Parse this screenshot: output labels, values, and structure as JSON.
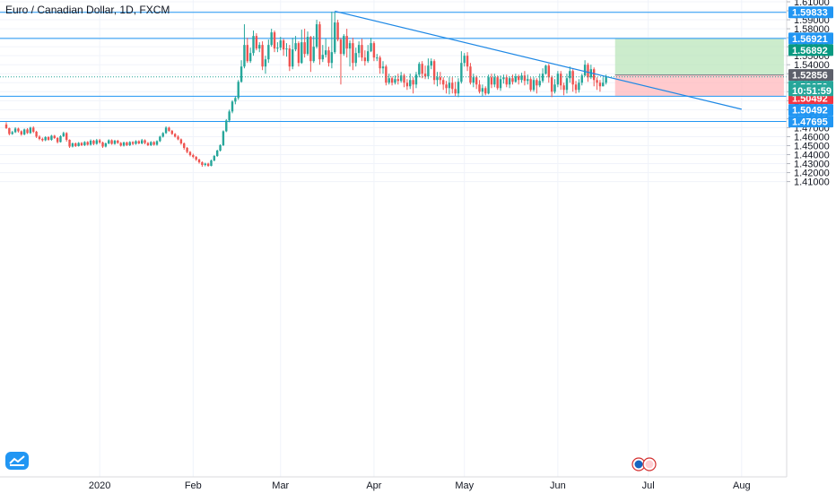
{
  "header": {
    "title": "Euro / Canadian Dollar, 1D, FXCM"
  },
  "chart_data": {
    "type": "candlestick",
    "y_ticks": [
      1.41,
      1.42,
      1.43,
      1.44,
      1.45,
      1.46,
      1.47,
      1.48,
      1.49,
      1.5,
      1.51,
      1.52,
      1.53,
      1.54,
      1.55,
      1.56,
      1.57,
      1.58,
      1.59,
      1.6,
      1.61
    ],
    "x_ticks": [
      {
        "label": "2020",
        "day": 31
      },
      {
        "label": "Feb",
        "day": 62
      },
      {
        "label": "Mar",
        "day": 91
      },
      {
        "label": "Apr",
        "day": 122
      },
      {
        "label": "May",
        "day": 152
      },
      {
        "label": "Jun",
        "day": 183
      },
      {
        "label": "Jul",
        "day": 213
      },
      {
        "label": "Aug",
        "day": 244
      }
    ],
    "horizontal_lines": [
      1.59833,
      1.56921,
      1.50492,
      1.47695
    ],
    "trendline": {
      "start": {
        "day": 109,
        "price": 1.5995
      },
      "end": {
        "day": 244,
        "price": 1.4905
      }
    },
    "position": {
      "entry": 1.52856,
      "target": 1.56921,
      "stop": 1.50492,
      "start_day": 202,
      "end_day": 258
    },
    "price_tags": [
      {
        "value": 1.59833,
        "label": "1.59833",
        "color": "#2196f3"
      },
      {
        "value": 1.56921,
        "label": "1.56921",
        "color": "#2196f3"
      },
      {
        "value": 1.56892,
        "label": "1.56892",
        "color": "#089981"
      },
      {
        "value": 1.52856,
        "label": "1.52856",
        "color": "#5d606b"
      },
      {
        "value": 1.5265,
        "label": "1.52650",
        "color": "#26a69a"
      },
      {
        "value": 1.50492,
        "label": "1.50492",
        "color": "#f23645"
      },
      {
        "value": 1.50492,
        "label": "1.50492",
        "color": "#2196f3"
      },
      {
        "value": 1.47695,
        "label": "1.47695",
        "color": "#2196f3"
      }
    ],
    "countdown": "10:51:59",
    "last_price": 1.5265,
    "candles": [
      [
        0,
        1.4735,
        1.4695,
        1.476,
        1.4685
      ],
      [
        1,
        1.4695,
        1.463,
        1.47,
        1.4615
      ],
      [
        2,
        1.463,
        1.465,
        1.4665,
        1.462
      ],
      [
        3,
        1.465,
        1.469,
        1.4705,
        1.464
      ],
      [
        4,
        1.469,
        1.466,
        1.47,
        1.4645
      ],
      [
        5,
        1.466,
        1.4625,
        1.467,
        1.461
      ],
      [
        6,
        1.4625,
        1.468,
        1.469,
        1.4615
      ],
      [
        7,
        1.468,
        1.464,
        1.4695,
        1.463
      ],
      [
        8,
        1.464,
        1.47,
        1.471,
        1.463
      ],
      [
        9,
        1.47,
        1.4655,
        1.4715,
        1.464
      ],
      [
        10,
        1.4655,
        1.46,
        1.4665,
        1.4585
      ],
      [
        11,
        1.46,
        1.4575,
        1.4615,
        1.456
      ],
      [
        12,
        1.4575,
        1.456,
        1.459,
        1.4545
      ],
      [
        13,
        1.456,
        1.4595,
        1.4605,
        1.455
      ],
      [
        14,
        1.4595,
        1.4565,
        1.4605,
        1.4555
      ],
      [
        15,
        1.4565,
        1.461,
        1.462,
        1.4555
      ],
      [
        16,
        1.461,
        1.4585,
        1.462,
        1.4575
      ],
      [
        17,
        1.4585,
        1.454,
        1.4595,
        1.4525
      ],
      [
        18,
        1.454,
        1.4605,
        1.4615,
        1.4535
      ],
      [
        19,
        1.4605,
        1.464,
        1.4655,
        1.4595
      ],
      [
        20,
        1.464,
        1.4565,
        1.465,
        1.4545
      ],
      [
        21,
        1.4565,
        1.449,
        1.457,
        1.4475
      ],
      [
        22,
        1.449,
        1.4525,
        1.4535,
        1.448
      ],
      [
        23,
        1.4525,
        1.4495,
        1.4535,
        1.4485
      ],
      [
        24,
        1.4495,
        1.453,
        1.454,
        1.449
      ],
      [
        25,
        1.453,
        1.4505,
        1.454,
        1.4495
      ],
      [
        26,
        1.4505,
        1.454,
        1.455,
        1.4495
      ],
      [
        27,
        1.454,
        1.451,
        1.455,
        1.45
      ],
      [
        28,
        1.451,
        1.4555,
        1.457,
        1.45
      ],
      [
        29,
        1.4555,
        1.452,
        1.4565,
        1.4505
      ],
      [
        30,
        1.452,
        1.456,
        1.4575,
        1.451
      ],
      [
        31,
        1.456,
        1.4535,
        1.4575,
        1.452
      ],
      [
        32,
        1.4535,
        1.449,
        1.4545,
        1.4475
      ],
      [
        33,
        1.449,
        1.4525,
        1.4535,
        1.448
      ],
      [
        34,
        1.4525,
        1.456,
        1.457,
        1.4515
      ],
      [
        35,
        1.456,
        1.452,
        1.457,
        1.451
      ],
      [
        36,
        1.452,
        1.4555,
        1.4565,
        1.451
      ],
      [
        37,
        1.4555,
        1.453,
        1.4565,
        1.452
      ],
      [
        38,
        1.453,
        1.45,
        1.454,
        1.449
      ],
      [
        39,
        1.45,
        1.4535,
        1.4545,
        1.449
      ],
      [
        40,
        1.4535,
        1.4505,
        1.4545,
        1.4495
      ],
      [
        41,
        1.4505,
        1.454,
        1.455,
        1.4495
      ],
      [
        42,
        1.454,
        1.452,
        1.455,
        1.4505
      ],
      [
        43,
        1.452,
        1.455,
        1.456,
        1.451
      ],
      [
        44,
        1.455,
        1.4525,
        1.456,
        1.4515
      ],
      [
        45,
        1.4525,
        1.456,
        1.4575,
        1.4515
      ],
      [
        46,
        1.456,
        1.453,
        1.457,
        1.4515
      ],
      [
        47,
        1.453,
        1.4505,
        1.454,
        1.4495
      ],
      [
        48,
        1.4505,
        1.454,
        1.455,
        1.4495
      ],
      [
        49,
        1.454,
        1.451,
        1.455,
        1.45
      ],
      [
        50,
        1.451,
        1.455,
        1.456,
        1.45
      ],
      [
        51,
        1.455,
        1.46,
        1.461,
        1.454
      ],
      [
        52,
        1.46,
        1.464,
        1.465,
        1.459
      ],
      [
        53,
        1.464,
        1.47,
        1.4715,
        1.463
      ],
      [
        54,
        1.47,
        1.4665,
        1.471,
        1.4655
      ],
      [
        55,
        1.4665,
        1.463,
        1.4675,
        1.462
      ],
      [
        56,
        1.463,
        1.46,
        1.464,
        1.459
      ],
      [
        57,
        1.46,
        1.457,
        1.4615,
        1.456
      ],
      [
        58,
        1.457,
        1.4525,
        1.458,
        1.451
      ],
      [
        59,
        1.4525,
        1.4475,
        1.4535,
        1.4455
      ],
      [
        60,
        1.4475,
        1.443,
        1.4485,
        1.4415
      ],
      [
        61,
        1.443,
        1.4395,
        1.444,
        1.438
      ],
      [
        62,
        1.4395,
        1.4375,
        1.441,
        1.436
      ],
      [
        63,
        1.4375,
        1.4345,
        1.4385,
        1.433
      ],
      [
        64,
        1.4345,
        1.4315,
        1.4355,
        1.43
      ],
      [
        65,
        1.4315,
        1.4285,
        1.4325,
        1.4265
      ],
      [
        66,
        1.4285,
        1.43,
        1.431,
        1.427
      ],
      [
        67,
        1.43,
        1.4275,
        1.431,
        1.4265
      ],
      [
        68,
        1.4275,
        1.4335,
        1.4345,
        1.427
      ],
      [
        69,
        1.4335,
        1.4385,
        1.4395,
        1.4325
      ],
      [
        70,
        1.4385,
        1.4445,
        1.4455,
        1.4375
      ],
      [
        71,
        1.4445,
        1.4505,
        1.4515,
        1.4435
      ],
      [
        72,
        1.4505,
        1.466,
        1.467,
        1.4495
      ],
      [
        73,
        1.466,
        1.478,
        1.4795,
        1.465
      ],
      [
        74,
        1.478,
        1.488,
        1.49,
        1.476
      ],
      [
        75,
        1.488,
        1.499,
        1.5005,
        1.486
      ],
      [
        76,
        1.499,
        1.503,
        1.505,
        1.496
      ],
      [
        77,
        1.503,
        1.521,
        1.523,
        1.501
      ],
      [
        78,
        1.521,
        1.538,
        1.545,
        1.52
      ],
      [
        79,
        1.538,
        1.562,
        1.585,
        1.536
      ],
      [
        80,
        1.562,
        1.544,
        1.57,
        1.542
      ],
      [
        81,
        1.544,
        1.553,
        1.559,
        1.542
      ],
      [
        82,
        1.553,
        1.572,
        1.578,
        1.55
      ],
      [
        83,
        1.572,
        1.558,
        1.575,
        1.556
      ],
      [
        84,
        1.558,
        1.562,
        1.565,
        1.554
      ],
      [
        85,
        1.562,
        1.538,
        1.566,
        1.534
      ],
      [
        86,
        1.538,
        1.546,
        1.55,
        1.53
      ],
      [
        87,
        1.546,
        1.562,
        1.568,
        1.542
      ],
      [
        88,
        1.562,
        1.576,
        1.58,
        1.56
      ],
      [
        89,
        1.576,
        1.558,
        1.578,
        1.554
      ],
      [
        90,
        1.558,
        1.559,
        1.565,
        1.554
      ],
      [
        91,
        1.559,
        1.567,
        1.571,
        1.556
      ],
      [
        92,
        1.567,
        1.557,
        1.569,
        1.55
      ],
      [
        93,
        1.557,
        1.558,
        1.564,
        1.549
      ],
      [
        94,
        1.558,
        1.538,
        1.562,
        1.533
      ],
      [
        95,
        1.538,
        1.557,
        1.57,
        1.535
      ],
      [
        96,
        1.557,
        1.564,
        1.572,
        1.555
      ],
      [
        97,
        1.564,
        1.542,
        1.566,
        1.538
      ],
      [
        98,
        1.542,
        1.565,
        1.579,
        1.541
      ],
      [
        99,
        1.565,
        1.552,
        1.58,
        1.548
      ],
      [
        100,
        1.552,
        1.571,
        1.577,
        1.55
      ],
      [
        101,
        1.571,
        1.544,
        1.572,
        1.532
      ],
      [
        102,
        1.544,
        1.56,
        1.572,
        1.542
      ],
      [
        103,
        1.56,
        1.585,
        1.59,
        1.558
      ],
      [
        104,
        1.585,
        1.546,
        1.588,
        1.54
      ],
      [
        105,
        1.546,
        1.551,
        1.562,
        1.543
      ],
      [
        106,
        1.551,
        1.556,
        1.569,
        1.548
      ],
      [
        107,
        1.556,
        1.542,
        1.56,
        1.538
      ],
      [
        108,
        1.542,
        1.554,
        1.599,
        1.536
      ],
      [
        109,
        1.554,
        1.587,
        1.599,
        1.552
      ],
      [
        110,
        1.587,
        1.568,
        1.59,
        1.566
      ],
      [
        111,
        1.568,
        1.552,
        1.57,
        1.518
      ],
      [
        112,
        1.552,
        1.572,
        1.574,
        1.55
      ],
      [
        113,
        1.572,
        1.558,
        1.58,
        1.548
      ],
      [
        114,
        1.558,
        1.564,
        1.567,
        1.538
      ],
      [
        115,
        1.564,
        1.542,
        1.57,
        1.534
      ],
      [
        116,
        1.542,
        1.553,
        1.559,
        1.538
      ],
      [
        117,
        1.553,
        1.562,
        1.566,
        1.548
      ],
      [
        118,
        1.562,
        1.548,
        1.569,
        1.544
      ],
      [
        119,
        1.548,
        1.544,
        1.556,
        1.539
      ],
      [
        120,
        1.544,
        1.555,
        1.562,
        1.542
      ],
      [
        121,
        1.555,
        1.564,
        1.57,
        1.554
      ],
      [
        122,
        1.564,
        1.548,
        1.566,
        1.544
      ],
      [
        123,
        1.548,
        1.548,
        1.552,
        1.544
      ],
      [
        124,
        1.548,
        1.536,
        1.55,
        1.53
      ],
      [
        125,
        1.536,
        1.538,
        1.544,
        1.53
      ],
      [
        126,
        1.538,
        1.52,
        1.54,
        1.517
      ],
      [
        127,
        1.52,
        1.525,
        1.53,
        1.518
      ],
      [
        128,
        1.525,
        1.52,
        1.527,
        1.517
      ],
      [
        129,
        1.52,
        1.524,
        1.528,
        1.518
      ],
      [
        130,
        1.524,
        1.522,
        1.53,
        1.518
      ],
      [
        131,
        1.522,
        1.528,
        1.532,
        1.52
      ],
      [
        132,
        1.528,
        1.52,
        1.53,
        1.515
      ],
      [
        133,
        1.52,
        1.516,
        1.524,
        1.512
      ],
      [
        134,
        1.516,
        1.523,
        1.53,
        1.513
      ],
      [
        135,
        1.523,
        1.518,
        1.526,
        1.508
      ],
      [
        136,
        1.518,
        1.529,
        1.532,
        1.514
      ],
      [
        137,
        1.529,
        1.541,
        1.543,
        1.526
      ],
      [
        138,
        1.541,
        1.53,
        1.544,
        1.525
      ],
      [
        139,
        1.53,
        1.527,
        1.539,
        1.524
      ],
      [
        140,
        1.527,
        1.539,
        1.547,
        1.524
      ],
      [
        141,
        1.539,
        1.544,
        1.547,
        1.535
      ],
      [
        142,
        1.544,
        1.523,
        1.546,
        1.518
      ],
      [
        143,
        1.523,
        1.526,
        1.532,
        1.516
      ],
      [
        144,
        1.526,
        1.523,
        1.532,
        1.518
      ],
      [
        145,
        1.523,
        1.518,
        1.526,
        1.512
      ],
      [
        146,
        1.518,
        1.514,
        1.522,
        1.508
      ],
      [
        147,
        1.514,
        1.52,
        1.526,
        1.507
      ],
      [
        148,
        1.52,
        1.513,
        1.526,
        1.508
      ],
      [
        149,
        1.513,
        1.508,
        1.521,
        1.505
      ],
      [
        150,
        1.508,
        1.521,
        1.525,
        1.504
      ],
      [
        151,
        1.521,
        1.542,
        1.555,
        1.519
      ],
      [
        152,
        1.542,
        1.55,
        1.553,
        1.538
      ],
      [
        153,
        1.55,
        1.538,
        1.554,
        1.533
      ],
      [
        154,
        1.538,
        1.52,
        1.542,
        1.518
      ],
      [
        155,
        1.52,
        1.526,
        1.53,
        1.515
      ],
      [
        156,
        1.526,
        1.518,
        1.528,
        1.513
      ],
      [
        157,
        1.518,
        1.51,
        1.523,
        1.508
      ],
      [
        158,
        1.51,
        1.514,
        1.518,
        1.505
      ],
      [
        159,
        1.514,
        1.508,
        1.516,
        1.506
      ],
      [
        160,
        1.508,
        1.526,
        1.529,
        1.507
      ],
      [
        161,
        1.526,
        1.518,
        1.53,
        1.514
      ],
      [
        162,
        1.518,
        1.526,
        1.53,
        1.515
      ],
      [
        163,
        1.526,
        1.514,
        1.528,
        1.512
      ],
      [
        164,
        1.514,
        1.524,
        1.528,
        1.511
      ],
      [
        165,
        1.524,
        1.526,
        1.529,
        1.519
      ],
      [
        166,
        1.526,
        1.518,
        1.529,
        1.515
      ],
      [
        167,
        1.518,
        1.525,
        1.527,
        1.514
      ],
      [
        168,
        1.525,
        1.521,
        1.529,
        1.518
      ],
      [
        169,
        1.521,
        1.527,
        1.53,
        1.52
      ],
      [
        170,
        1.527,
        1.523,
        1.529,
        1.518
      ],
      [
        171,
        1.523,
        1.528,
        1.531,
        1.52
      ],
      [
        172,
        1.528,
        1.522,
        1.533,
        1.517
      ],
      [
        173,
        1.522,
        1.524,
        1.529,
        1.518
      ],
      [
        174,
        1.524,
        1.512,
        1.526,
        1.51
      ],
      [
        175,
        1.512,
        1.523,
        1.526,
        1.51
      ],
      [
        176,
        1.523,
        1.517,
        1.525,
        1.508
      ],
      [
        177,
        1.517,
        1.522,
        1.53,
        1.515
      ],
      [
        178,
        1.522,
        1.53,
        1.536,
        1.52
      ],
      [
        179,
        1.53,
        1.539,
        1.54,
        1.529
      ],
      [
        180,
        1.539,
        1.526,
        1.541,
        1.52
      ],
      [
        181,
        1.526,
        1.51,
        1.528,
        1.504
      ],
      [
        182,
        1.51,
        1.518,
        1.524,
        1.508
      ],
      [
        183,
        1.518,
        1.53,
        1.533,
        1.515
      ],
      [
        184,
        1.53,
        1.517,
        1.533,
        1.512
      ],
      [
        185,
        1.517,
        1.512,
        1.52,
        1.506
      ],
      [
        186,
        1.512,
        1.525,
        1.53,
        1.508
      ],
      [
        187,
        1.525,
        1.533,
        1.538,
        1.52
      ],
      [
        188,
        1.533,
        1.518,
        1.535,
        1.51
      ],
      [
        189,
        1.518,
        1.512,
        1.522,
        1.508
      ],
      [
        190,
        1.512,
        1.52,
        1.524,
        1.509
      ],
      [
        191,
        1.52,
        1.528,
        1.53,
        1.517
      ],
      [
        192,
        1.528,
        1.54,
        1.545,
        1.527
      ],
      [
        193,
        1.54,
        1.526,
        1.542,
        1.521
      ],
      [
        194,
        1.526,
        1.535,
        1.54,
        1.524
      ],
      [
        195,
        1.535,
        1.523,
        1.537,
        1.516
      ],
      [
        196,
        1.523,
        1.52,
        1.526,
        1.512
      ],
      [
        197,
        1.52,
        1.516,
        1.523,
        1.51
      ],
      [
        198,
        1.516,
        1.52,
        1.526,
        1.516
      ],
      [
        199,
        1.52,
        1.5265,
        1.529,
        1.518
      ]
    ]
  }
}
